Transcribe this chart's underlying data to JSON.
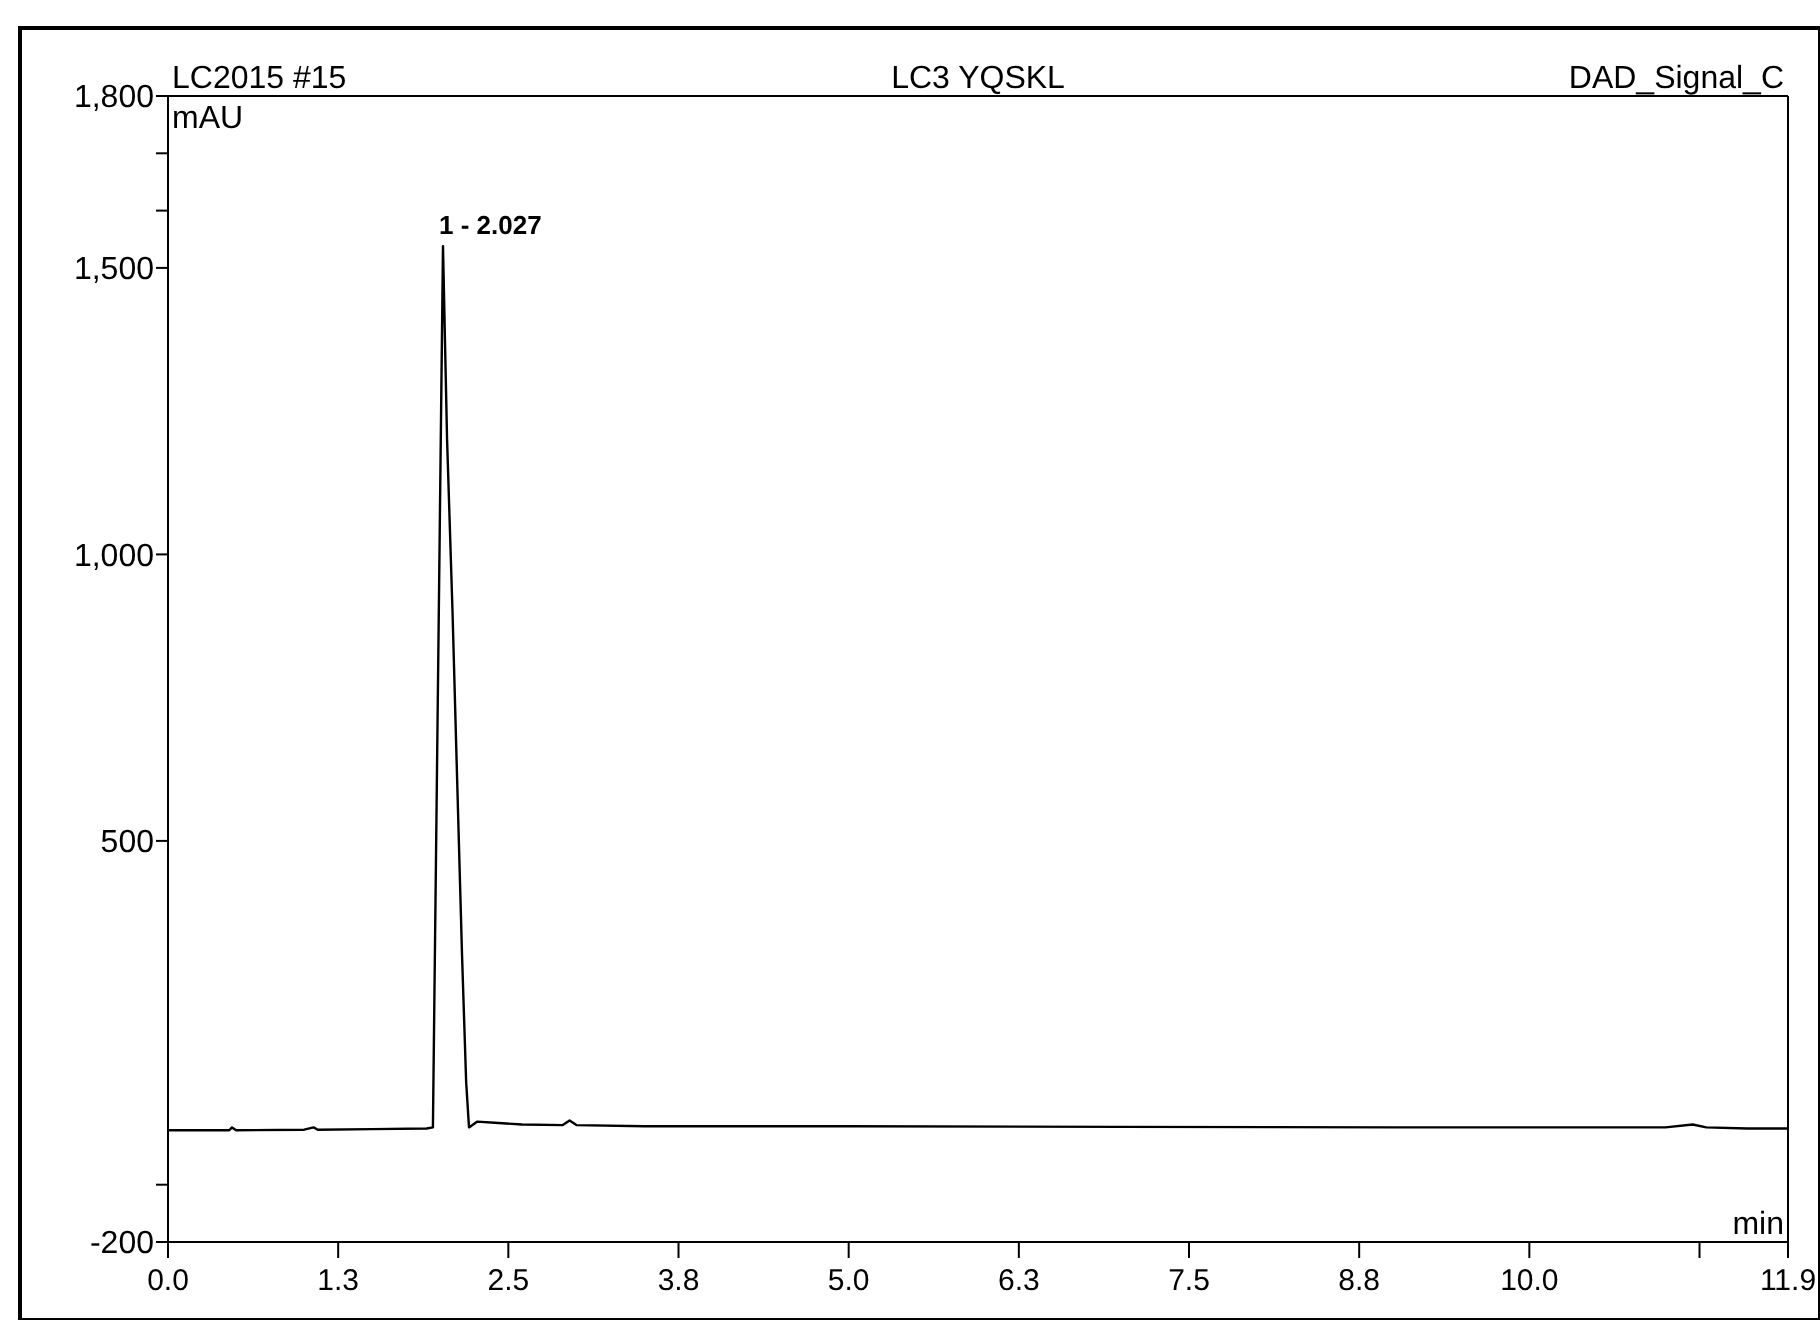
{
  "chart_data": {
    "type": "line",
    "title": "LC3 YQSKL",
    "subtitle": "LC2015 #15",
    "annotations": [
      "DAD_Signal_C",
      {
        "text": "1 - 2.027",
        "x": 2.02,
        "y": 1538
      }
    ],
    "xlabel": "min",
    "ylabel": "mAU",
    "series": [
      {
        "color": "#000000",
        "x": [
          0,
          0.45,
          0.47,
          0.5,
          1.0,
          1.07,
          1.1,
          1.5,
          1.9,
          1.946,
          2.02,
          2.05,
          2.09,
          2.124,
          2.16,
          2.19,
          2.211,
          2.27,
          2.4,
          2.6,
          2.9,
          2.95,
          3.0,
          3.5,
          5,
          7,
          9,
          11,
          11.2,
          11.3,
          11.6,
          11.9
        ],
        "values": [
          -5,
          -5,
          0,
          -5,
          -4,
          0,
          -4,
          -3,
          -2,
          0,
          1538,
          1200,
          900,
          606,
          300,
          80,
          0,
          10,
          8,
          5,
          4,
          12,
          4,
          2,
          2,
          1,
          0,
          0,
          5,
          0,
          -2,
          -2
        ]
      }
    ],
    "xlim": [
      0,
      11.9
    ],
    "ylim": [
      -200,
      1800
    ],
    "xticks": [
      {
        "value": 0,
        "label": "0.0"
      },
      {
        "value": 1.25,
        "label": "1.3"
      },
      2.5,
      {
        "value": 3.75,
        "label": "3.8"
      },
      {
        "value": 5,
        "label": "5.0"
      },
      {
        "value": 6.25,
        "label": "6.3"
      },
      7.5,
      {
        "value": 8.75,
        "label": "8.8"
      },
      {
        "value": 10,
        "label": "10.0"
      },
      {
        "value": 11.25,
        "label": null
      },
      11.9
    ],
    "yticks": [
      -200,
      {
        "value": -100,
        "label": null
      },
      500,
      {
        "value": 1000,
        "label": "1,000"
      },
      {
        "value": 1500,
        "label": "1,500"
      },
      {
        "value": 1600,
        "label": null
      },
      {
        "value": 1700,
        "label": null
      },
      {
        "value": 1800,
        "label": "1,800"
      }
    ],
    "grid": false,
    "marker": "none",
    "line_style": "solid"
  }
}
